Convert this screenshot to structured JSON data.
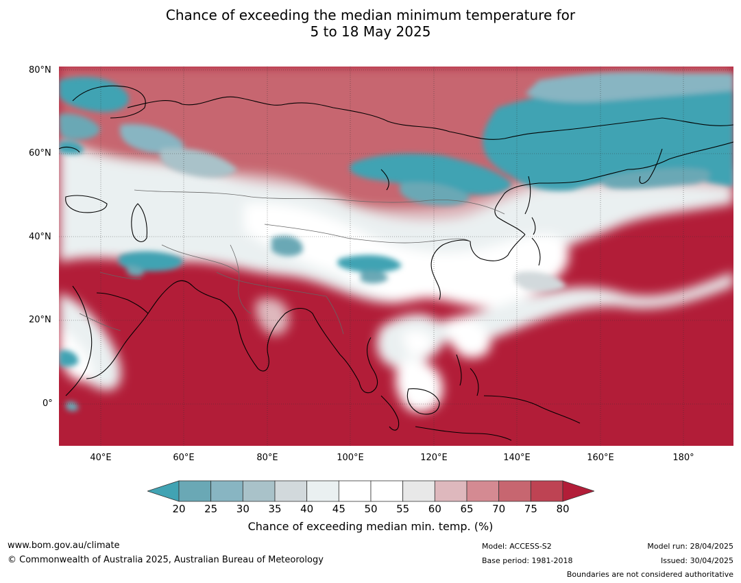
{
  "title": {
    "line1": "Chance of exceeding the median minimum temperature for",
    "line2": "5 to 18 May 2025"
  },
  "map": {
    "lat_labels": [
      "80°N",
      "60°N",
      "40°N",
      "20°N",
      "0°"
    ],
    "lon_labels": [
      "40°E",
      "60°E",
      "80°E",
      "100°E",
      "120°E",
      "140°E",
      "160°E",
      "180°"
    ],
    "lon_range": [
      30,
      192
    ],
    "lat_range": [
      -10,
      80
    ],
    "grid": true
  },
  "colorbar": {
    "ticks": [
      "20",
      "25",
      "30",
      "35",
      "40",
      "45",
      "50",
      "55",
      "60",
      "65",
      "70",
      "75",
      "80"
    ],
    "colors": [
      "#41a3b3",
      "#6aa8b5",
      "#88b5c2",
      "#a9c2c9",
      "#d2d9dc",
      "#eaf0f1",
      "#ffffff",
      "#ffffff",
      "#e8e8e8",
      "#deb8bd",
      "#d48a92",
      "#c76670",
      "#be4353",
      "#b21d38"
    ],
    "label": "Chance of exceeding median min. temp. (%)"
  },
  "footer": {
    "url": "www.bom.gov.au/climate",
    "copyright": "© Commonwealth of Australia 2025, Australian Bureau of Meteorology",
    "model": "Model: ACCESS-S2",
    "base_period": "Base period: 1981-2018",
    "model_run": "Model run: 28/04/2025",
    "issued": "Issued: 30/04/2025",
    "disclaimer": "Boundaries are not considered authoritative"
  }
}
